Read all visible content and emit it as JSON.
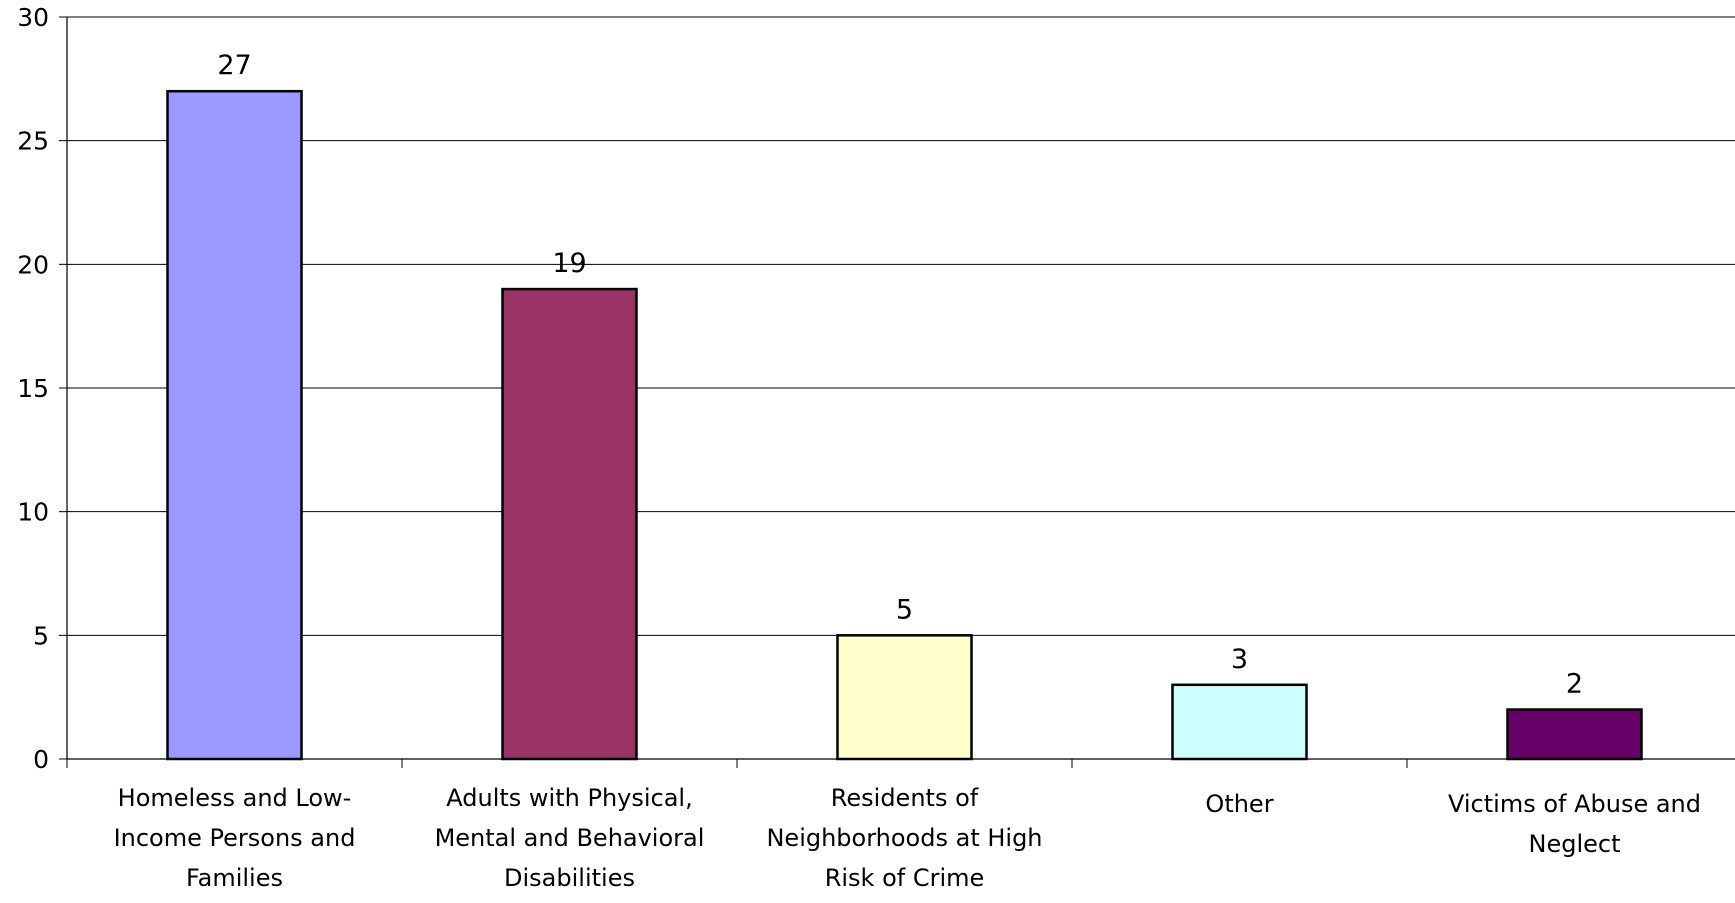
{
  "chart_data": {
    "type": "bar",
    "title": "",
    "xlabel": "",
    "ylabel": "",
    "ylim": [
      0,
      30
    ],
    "yticks": [
      0,
      5,
      10,
      15,
      20,
      25,
      30
    ],
    "grid": true,
    "categories": [
      "Homeless and Low-Income Persons and Families",
      "Adults with Physical, Mental and Behavioral Disabilities",
      "Residents of Neighborhoods at High Risk of Crime",
      "Other",
      "Victims of Abuse and Neglect"
    ],
    "category_lines": [
      [
        "Homeless and Low-",
        "Income Persons and",
        "Families"
      ],
      [
        "Adults with Physical,",
        "Mental and Behavioral",
        "Disabilities"
      ],
      [
        "Residents of",
        "Neighborhoods at High",
        "Risk of Crime"
      ],
      [
        "Other"
      ],
      [
        "Victims of Abuse and",
        "Neglect"
      ]
    ],
    "values": [
      27,
      19,
      5,
      3,
      2
    ],
    "data_labels": [
      "27",
      "19",
      "5",
      "3",
      "2"
    ],
    "colors": [
      "#9999FF",
      "#993366",
      "#FFFFCC",
      "#CCFFFF",
      "#660066"
    ]
  }
}
